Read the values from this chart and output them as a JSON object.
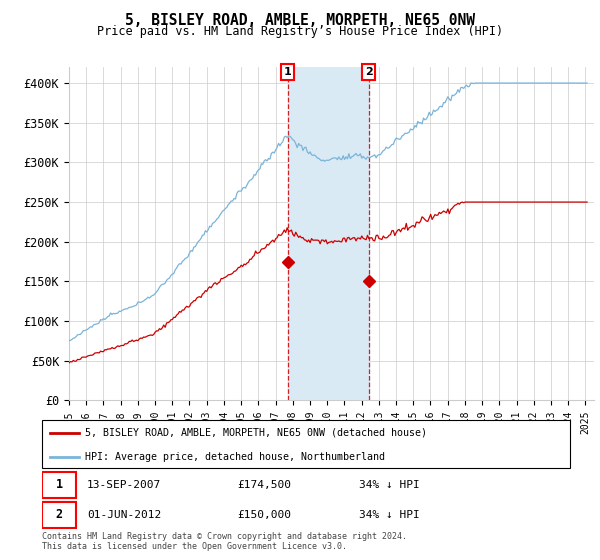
{
  "title": "5, BISLEY ROAD, AMBLE, MORPETH, NE65 0NW",
  "subtitle": "Price paid vs. HM Land Registry’s House Price Index (HPI)",
  "ylim": [
    0,
    420000
  ],
  "yticks": [
    0,
    50000,
    100000,
    150000,
    200000,
    250000,
    300000,
    350000,
    400000
  ],
  "ytick_labels": [
    "£0",
    "£50K",
    "£100K",
    "£150K",
    "£200K",
    "£250K",
    "£300K",
    "£350K",
    "£400K"
  ],
  "hpi_color": "#7ab4d8",
  "price_color": "#cc0000",
  "shaded_region_color": "#daeaf5",
  "grid_color": "#cccccc",
  "sale1_year": 2007.708,
  "sale1_price": 174500,
  "sale2_year": 2012.417,
  "sale2_price": 150000,
  "legend_line1": "5, BISLEY ROAD, AMBLE, MORPETH, NE65 0NW (detached house)",
  "legend_line2": "HPI: Average price, detached house, Northumberland",
  "footnote1": "Contains HM Land Registry data © Crown copyright and database right 2024.",
  "footnote2": "This data is licensed under the Open Government Licence v3.0.",
  "xstart_year": 1995,
  "xend_year": 2025
}
